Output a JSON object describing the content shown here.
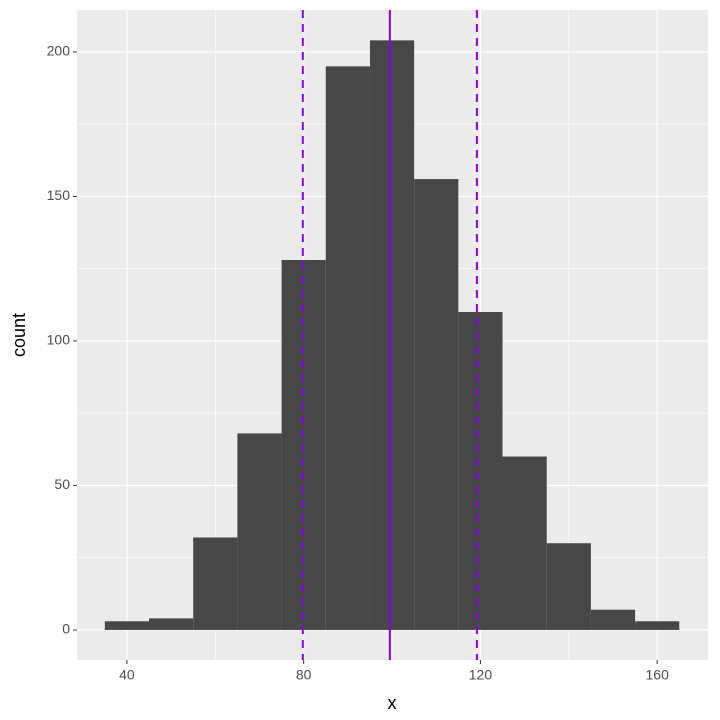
{
  "chart_data": {
    "type": "histogram",
    "xlabel": "x",
    "ylabel": "count",
    "bins": [
      35,
      45,
      55,
      65,
      75,
      85,
      95,
      105,
      115,
      125,
      135,
      145,
      155,
      165
    ],
    "counts": [
      3,
      4,
      32,
      68,
      128,
      195,
      204,
      156,
      110,
      60,
      30,
      7,
      3
    ],
    "color": "#474747",
    "xlim": [
      28.7,
      171.5
    ],
    "ylim": [
      -10.4,
      214.5
    ],
    "xticks": [
      40,
      80,
      120,
      160
    ],
    "yticks": [
      0,
      50,
      100,
      150,
      200
    ],
    "x_minor_ticks": [
      60,
      100,
      140
    ],
    "y_minor_ticks": [
      25,
      75,
      125,
      175
    ],
    "grid": true,
    "vlines": [
      {
        "value": 99.5,
        "linetype": "solid",
        "color": "#8a00e6"
      },
      {
        "value": 79.8,
        "linetype": "dashed",
        "color": "#8a00e6"
      },
      {
        "value": 119.2,
        "linetype": "dashed",
        "color": "#8a00e6"
      }
    ]
  }
}
